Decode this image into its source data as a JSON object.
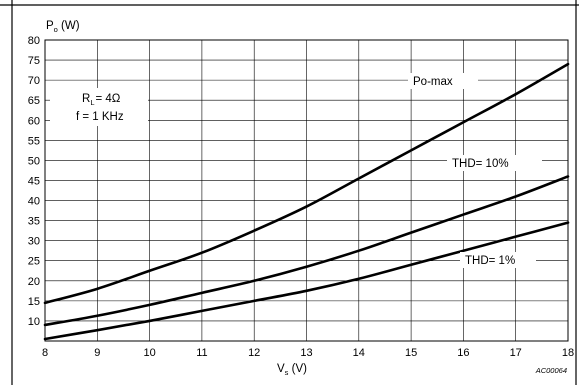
{
  "chart_data": {
    "type": "line",
    "title": "",
    "ylabel": {
      "main": "P",
      "sub": "o",
      "unit": " (W)"
    },
    "xlabel": {
      "main": "V",
      "sub": "s",
      "unit": " (V)"
    },
    "xlim": [
      8,
      18
    ],
    "ylim": [
      5,
      80
    ],
    "x_ticks": [
      8,
      9,
      10,
      11,
      12,
      13,
      14,
      15,
      16,
      17,
      18
    ],
    "y_ticks": [
      10,
      15,
      20,
      25,
      30,
      35,
      40,
      45,
      50,
      55,
      60,
      65,
      70,
      75,
      80
    ],
    "grid": true,
    "conditions": {
      "rl_main": "R",
      "rl_sub": "L",
      "rl_value": "= 4Ω",
      "freq": "f = 1 KHz"
    },
    "series": [
      {
        "name": "Po-max",
        "x": [
          8,
          9,
          10,
          11,
          12,
          13,
          14,
          15,
          16,
          17,
          18
        ],
        "y": [
          14.5,
          18,
          22.5,
          27,
          32.5,
          38.5,
          45.5,
          52.5,
          59.5,
          66.5,
          74
        ]
      },
      {
        "name": "THD= 10%",
        "x": [
          8,
          9,
          10,
          11,
          12,
          13,
          14,
          15,
          16,
          17,
          18
        ],
        "y": [
          9,
          11.3,
          14,
          17,
          20,
          23.5,
          27.5,
          32,
          36.5,
          41,
          46
        ]
      },
      {
        "name": "THD= 1%",
        "x": [
          8,
          9,
          10,
          11,
          12,
          13,
          14,
          15,
          16,
          17,
          18
        ],
        "y": [
          5.5,
          7.7,
          10,
          12.5,
          15,
          17.5,
          20.5,
          24,
          27.5,
          31,
          34.5
        ]
      }
    ],
    "reference": "AC00064"
  }
}
